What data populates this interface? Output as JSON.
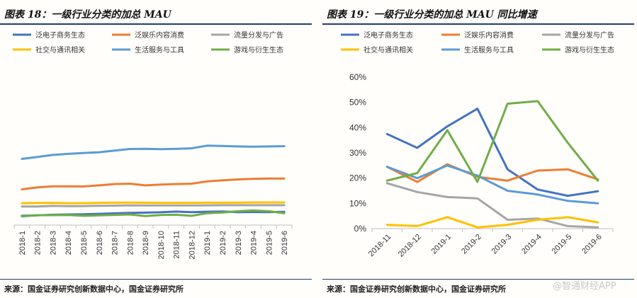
{
  "chart_data": [
    {
      "type": "line",
      "title": "图表 18：一级行业分类的加总 MAU",
      "source": "来源：国金证券研究创新数据中心，国金证券研究所",
      "x": [
        "2018-1",
        "2018-2",
        "2018-3",
        "2018-4",
        "2018-5",
        "2018-6",
        "2018-7",
        "2018-8",
        "2018-9",
        "2018-10",
        "2018-11",
        "2018-12",
        "2019-1",
        "2019-2",
        "2019-3",
        "2019-4",
        "2019-5",
        "2019-6"
      ],
      "ylim": [
        0,
        100
      ],
      "y_ticks_shown": false,
      "grid": false,
      "legend_position": "top",
      "series": [
        {
          "name": "泛电子商务生态",
          "color": "#4472c4",
          "values": [
            7,
            7.3,
            7.8,
            8,
            8.2,
            8.5,
            8.9,
            9.2,
            9.4,
            9.7,
            10.2,
            9.8,
            10.1,
            10.3,
            9.8,
            9.9,
            9.8,
            10
          ]
        },
        {
          "name": "泛娱乐内容消费",
          "color": "#ed7d31",
          "values": [
            27,
            28.5,
            29.3,
            29.3,
            29.2,
            30,
            31,
            31.3,
            30,
            30.6,
            31,
            31.3,
            33,
            33.8,
            34.5,
            35,
            35.2,
            35.2
          ]
        },
        {
          "name": "流量分发与广告",
          "color": "#a5a5a5",
          "values": [
            14,
            14,
            14.5,
            14.3,
            14.4,
            14.6,
            14.7,
            14.9,
            14.8,
            14.8,
            14.8,
            14.8,
            14.9,
            15,
            15,
            15,
            15,
            15
          ]
        },
        {
          "name": "社交与通讯相关",
          "color": "#ffc000",
          "values": [
            16.5,
            16.7,
            16.8,
            16.5,
            16.6,
            16.8,
            16.9,
            17,
            16.9,
            16.8,
            16.8,
            16.8,
            16.9,
            16.9,
            17,
            17.1,
            17.1,
            17.1
          ]
        },
        {
          "name": "生活服务与工具",
          "color": "#5b9bd5",
          "values": [
            50,
            51.5,
            53,
            53.8,
            54.5,
            55,
            56.3,
            57.5,
            57.6,
            57.3,
            57.6,
            58,
            60,
            59.8,
            59.4,
            59.2,
            59.4,
            59.6
          ]
        },
        {
          "name": "游戏与衍生生态",
          "color": "#70ad47",
          "values": [
            6.5,
            7.5,
            7.5,
            7.6,
            7,
            7.4,
            7.7,
            8,
            6.8,
            7.6,
            7.8,
            7,
            9,
            9.5,
            10.5,
            11,
            10.5,
            9
          ]
        }
      ]
    },
    {
      "type": "line",
      "title": "图表 19：一级行业分类的加总 MAU 同比增速",
      "source": "来源：国金证券研究创新数据中心，国金证券研究所",
      "x": [
        "2018-11",
        "2018-12",
        "2019-1",
        "2019-2",
        "2019-3",
        "2019-4",
        "2019-5",
        "2019-6"
      ],
      "ylim": [
        0,
        60
      ],
      "yticks": [
        "0%",
        "10%",
        "20%",
        "30%",
        "40%",
        "50%",
        "60%"
      ],
      "ylabel_unit": "%",
      "grid": false,
      "legend_position": "top",
      "series": [
        {
          "name": "泛电子商务生态",
          "color": "#4472c4",
          "values": [
            37.5,
            32,
            40.5,
            47.5,
            23.5,
            15.5,
            13,
            14.8
          ]
        },
        {
          "name": "泛娱乐内容消费",
          "color": "#ed7d31",
          "values": [
            24.5,
            18.5,
            25.5,
            20.5,
            19,
            23,
            23.5,
            19.5
          ]
        },
        {
          "name": "流量分发与广告",
          "color": "#a5a5a5",
          "values": [
            18,
            14.5,
            12.5,
            12,
            3.5,
            4,
            1,
            0.5
          ]
        },
        {
          "name": "社交与通讯相关",
          "color": "#ffc000",
          "values": [
            1.5,
            1,
            4.5,
            0.5,
            1.5,
            3.5,
            4.5,
            2.5
          ]
        },
        {
          "name": "生活服务与工具",
          "color": "#5b9bd5",
          "values": [
            24.5,
            20,
            25,
            21,
            15,
            13.5,
            11,
            10
          ]
        },
        {
          "name": "游戏与衍生生态",
          "color": "#70ad47",
          "values": [
            19,
            22,
            39,
            18.5,
            49.5,
            50.5,
            34,
            19
          ]
        }
      ]
    }
  ],
  "watermark": "@智通财经APP"
}
